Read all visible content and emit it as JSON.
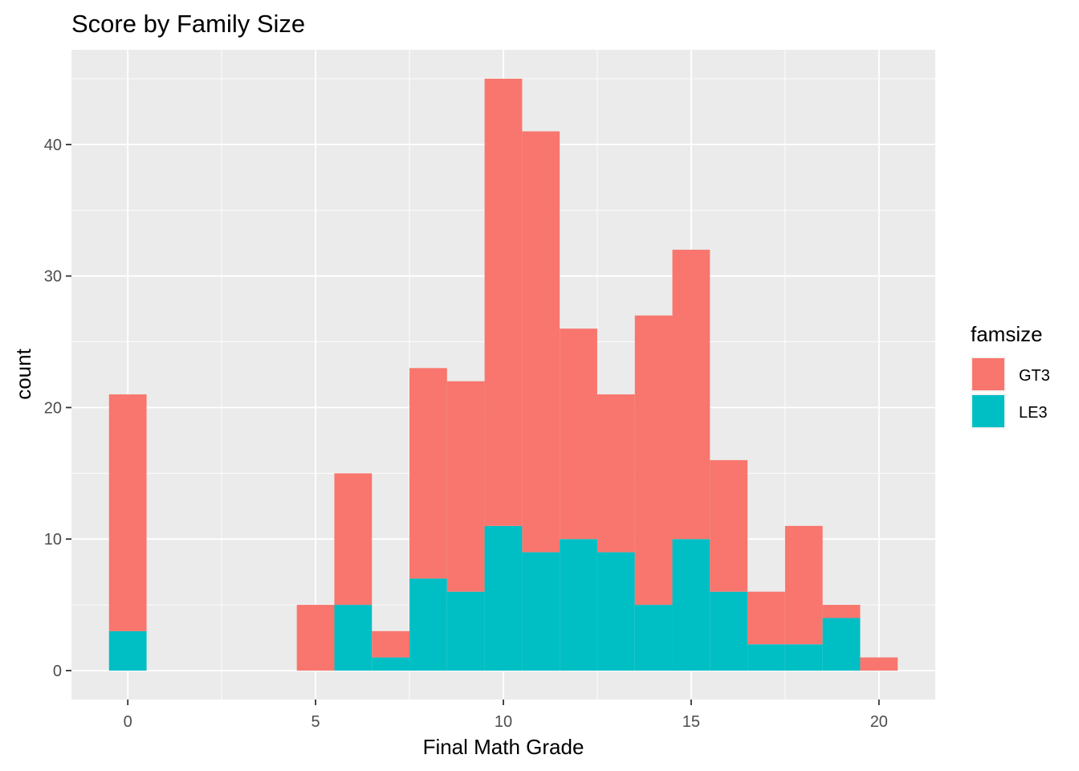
{
  "chart_data": {
    "type": "bar",
    "subtype": "stacked-histogram",
    "title": "Score by Family Size",
    "xlabel": "Final Math Grade",
    "ylabel": "count",
    "xlim": [
      -1.5,
      21.5
    ],
    "ylim": [
      -2.2,
      47.2
    ],
    "bin_width": 1,
    "x_ticks": [
      0,
      5,
      10,
      15,
      20
    ],
    "y_ticks": [
      0,
      10,
      20,
      30,
      40
    ],
    "grid": true,
    "legend": {
      "title": "famsize",
      "position": "right"
    },
    "x": [
      0,
      1,
      2,
      3,
      4,
      5,
      6,
      7,
      8,
      9,
      10,
      11,
      12,
      13,
      14,
      15,
      16,
      17,
      18,
      19,
      20
    ],
    "series": [
      {
        "name": "GT3",
        "color": "#F8766D",
        "values": [
          18,
          0,
          0,
          0,
          0,
          5,
          10,
          2,
          16,
          16,
          34,
          32,
          16,
          12,
          22,
          22,
          10,
          4,
          9,
          1,
          1
        ]
      },
      {
        "name": "LE3",
        "color": "#00BFC4",
        "values": [
          3,
          0,
          0,
          0,
          0,
          0,
          5,
          1,
          7,
          6,
          11,
          9,
          10,
          9,
          5,
          10,
          6,
          2,
          2,
          4,
          0
        ]
      }
    ]
  },
  "style": {
    "panel_background": "#EBEBEB",
    "grid_major": "#FFFFFF",
    "text_color": "#000000",
    "tick_color": "#4D4D4D"
  }
}
